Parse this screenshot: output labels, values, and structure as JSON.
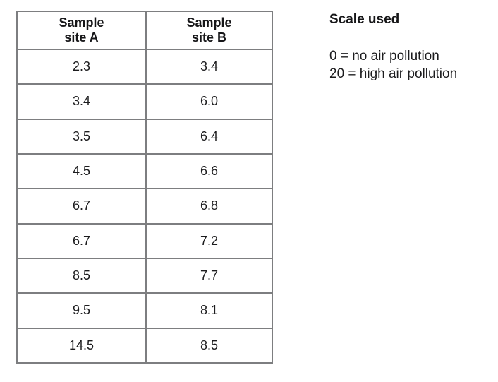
{
  "table": {
    "columns": [
      {
        "line1": "Sample",
        "line2": "site A"
      },
      {
        "line1": "Sample",
        "line2": "site B"
      }
    ],
    "rows": [
      [
        "2.3",
        "3.4"
      ],
      [
        "3.4",
        "6.0"
      ],
      [
        "3.5",
        "6.4"
      ],
      [
        "4.5",
        "6.6"
      ],
      [
        "6.7",
        "6.8"
      ],
      [
        "6.7",
        "7.2"
      ],
      [
        "8.5",
        "7.7"
      ],
      [
        "9.5",
        "8.1"
      ],
      [
        "14.5",
        "8.5"
      ]
    ]
  },
  "scale": {
    "title": "Scale used",
    "lines": [
      "0 = no air pollution",
      "20 = high air pollution"
    ]
  },
  "colors": {
    "outer_border": "#4f4f51",
    "inner_border": "#7d7e80",
    "text": "#1c1c1e",
    "background": "#ffffff"
  }
}
